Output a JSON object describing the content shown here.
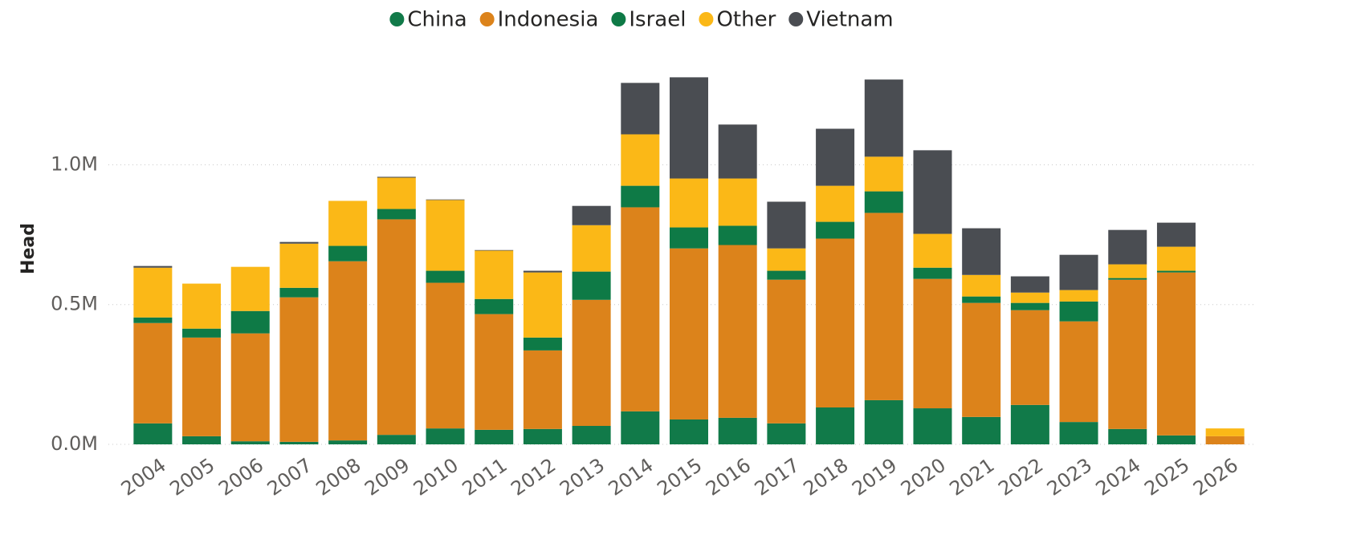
{
  "chart_data": {
    "type": "stacked_bar",
    "y_label": "Head",
    "categories": [
      "2004",
      "2005",
      "2006",
      "2007",
      "2008",
      "2009",
      "2010",
      "2011",
      "2012",
      "2013",
      "2014",
      "2015",
      "2016",
      "2017",
      "2018",
      "2019",
      "2020",
      "2021",
      "2022",
      "2023",
      "2024",
      "2025",
      "2026"
    ],
    "series": [
      {
        "name": "China",
        "color": "#117a49",
        "values": [
          75000,
          29000,
          11000,
          9000,
          14000,
          34000,
          57000,
          52000,
          55000,
          66000,
          118000,
          89000,
          95000,
          75000,
          132000,
          158000,
          129000,
          98000,
          141000,
          80000,
          55000,
          32000,
          0
        ]
      },
      {
        "name": "Indonesia",
        "color": "#dc831b",
        "values": [
          359000,
          353000,
          386000,
          517000,
          641000,
          771000,
          521000,
          414000,
          281000,
          451000,
          730000,
          612000,
          618000,
          514000,
          604000,
          670000,
          463000,
          408000,
          339000,
          360000,
          534000,
          583000,
          29000
        ]
      },
      {
        "name": "Israel",
        "color": "#0e7a46",
        "values": [
          20000,
          32000,
          80000,
          34000,
          55000,
          37000,
          43000,
          54000,
          46000,
          101000,
          77000,
          75000,
          69000,
          32000,
          60000,
          77000,
          40000,
          23000,
          26000,
          71000,
          6000,
          6000,
          0
        ]
      },
      {
        "name": "Other",
        "color": "#fbb817",
        "values": [
          178000,
          161000,
          158000,
          158000,
          161000,
          112000,
          253000,
          173000,
          233000,
          166000,
          184000,
          175000,
          169000,
          80000,
          129000,
          124000,
          121000,
          77000,
          37000,
          41000,
          49000,
          86000,
          28000
        ]
      },
      {
        "name": "Vietnam",
        "color": "#4a4d52",
        "values": [
          6000,
          0,
          0,
          6000,
          0,
          3000,
          2000,
          2000,
          6000,
          69000,
          184000,
          362000,
          193000,
          167000,
          204000,
          276000,
          299000,
          167000,
          58000,
          126000,
          123000,
          86000,
          0
        ]
      }
    ],
    "ylim": [
      0,
      1360000
    ],
    "yticks": [
      {
        "value": 0,
        "label": "0.0M"
      },
      {
        "value": 500000,
        "label": "0.5M"
      },
      {
        "value": 1000000,
        "label": "1.0M"
      }
    ],
    "grid": true,
    "legend": "top"
  }
}
